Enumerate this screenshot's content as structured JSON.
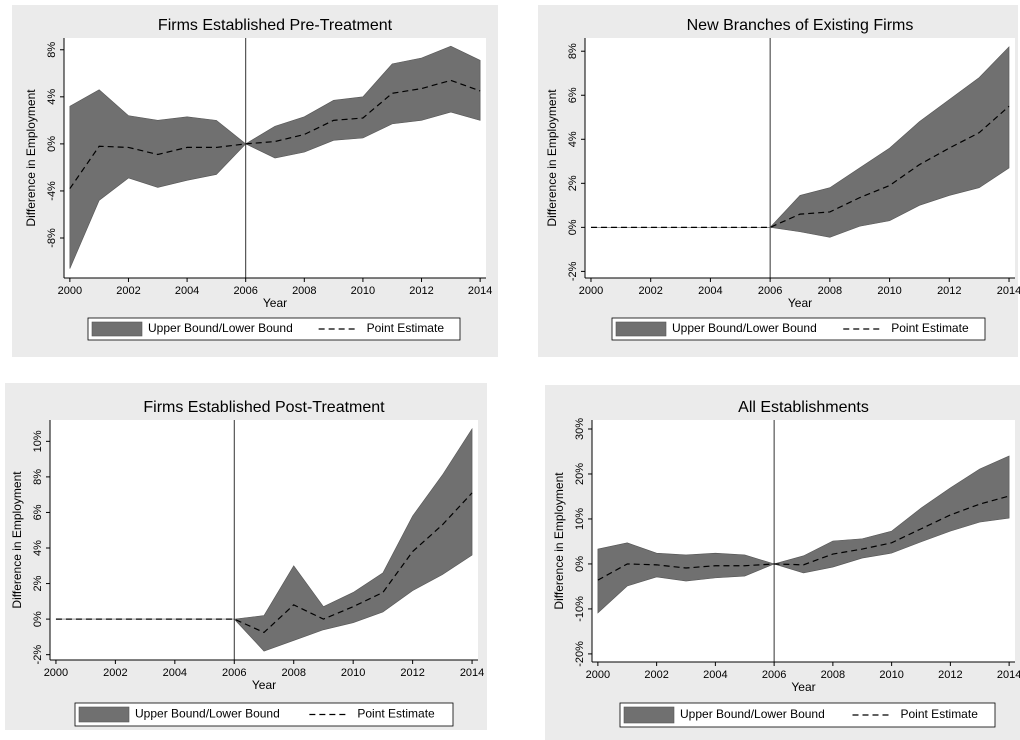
{
  "chart_data": [
    {
      "type": "band-line",
      "title": "Firms Established Pre-Treatment",
      "x_label": "Year",
      "y_label": "Difference in Employment",
      "x": [
        2000,
        2001,
        2002,
        2003,
        2004,
        2005,
        2006,
        2007,
        2008,
        2009,
        2010,
        2011,
        2012,
        2013,
        2014
      ],
      "series": [
        {
          "name": "Upper Bound/Lower Bound",
          "color": "#707070",
          "upper": [
            3.2,
            4.6,
            2.4,
            2.0,
            2.3,
            2.0,
            0,
            1.5,
            2.3,
            3.7,
            4.0,
            6.8,
            7.3,
            8.3,
            7.1
          ],
          "lower": [
            -10.6,
            -4.8,
            -2.9,
            -3.7,
            -3.1,
            -2.6,
            0,
            -1.2,
            -0.7,
            0.3,
            0.5,
            1.7,
            2.0,
            2.7,
            2.0
          ]
        },
        {
          "name": "Point Estimate",
          "color": "#000000",
          "values": [
            -3.8,
            -0.2,
            -0.3,
            -0.9,
            -0.3,
            -0.3,
            0,
            0.2,
            0.8,
            2.0,
            2.2,
            4.3,
            4.7,
            5.4,
            4.5
          ]
        }
      ],
      "vline": 2006,
      "xlim": [
        1999.8,
        2014.2
      ],
      "xticks": [
        2000,
        2002,
        2004,
        2006,
        2008,
        2010,
        2012,
        2014
      ],
      "ylim": [
        -11.4,
        9.0
      ],
      "yticks": [
        {
          "value": -8,
          "label": "-8%"
        },
        {
          "value": -4,
          "label": "-4%"
        },
        {
          "value": 0,
          "label": "0%"
        },
        {
          "value": 4,
          "label": "4%"
        },
        {
          "value": 8,
          "label": "8%"
        }
      ]
    },
    {
      "type": "band-line",
      "title": "New Branches of Existing Firms",
      "x_label": "Year",
      "y_label": "Difference in Employment",
      "x": [
        2000,
        2001,
        2002,
        2003,
        2004,
        2005,
        2006,
        2007,
        2008,
        2009,
        2010,
        2011,
        2012,
        2013,
        2014
      ],
      "series": [
        {
          "name": "Upper Bound/Lower Bound",
          "color": "#707070",
          "upper": [
            0,
            0,
            0,
            0,
            0,
            0,
            0,
            1.45,
            1.8,
            2.7,
            3.6,
            4.8,
            5.8,
            6.8,
            8.2
          ],
          "lower": [
            0,
            0,
            0,
            0,
            0,
            0,
            0,
            -0.2,
            -0.45,
            0.05,
            0.3,
            1.0,
            1.45,
            1.8,
            2.7
          ]
        },
        {
          "name": "Point Estimate",
          "color": "#000000",
          "values": [
            0,
            0,
            0,
            0,
            0,
            0,
            0,
            0.6,
            0.7,
            1.35,
            1.9,
            2.85,
            3.6,
            4.3,
            5.5
          ]
        }
      ],
      "vline": 2006,
      "xlim": [
        1999.8,
        2014.2
      ],
      "xticks": [
        2000,
        2002,
        2004,
        2006,
        2008,
        2010,
        2012,
        2014
      ],
      "ylim": [
        -2.3,
        8.6
      ],
      "yticks": [
        {
          "value": -2,
          "label": "-2%"
        },
        {
          "value": 0,
          "label": "0%"
        },
        {
          "value": 2,
          "label": "2%"
        },
        {
          "value": 4,
          "label": "4%"
        },
        {
          "value": 6,
          "label": "6%"
        },
        {
          "value": 8,
          "label": "8%"
        }
      ]
    },
    {
      "type": "band-line",
      "title": "Firms Established Post-Treatment",
      "x_label": "Year",
      "y_label": "Difference in Employment",
      "x": [
        2000,
        2001,
        2002,
        2003,
        2004,
        2005,
        2006,
        2007,
        2008,
        2009,
        2010,
        2011,
        2012,
        2013,
        2014
      ],
      "series": [
        {
          "name": "Upper Bound/Lower Bound",
          "color": "#707070",
          "upper": [
            0,
            0,
            0,
            0,
            0,
            0,
            0,
            0.2,
            3.0,
            0.7,
            1.5,
            2.6,
            5.8,
            8.1,
            10.7
          ],
          "lower": [
            0,
            0,
            0,
            0,
            0,
            0,
            0,
            -1.8,
            -1.2,
            -0.6,
            -0.2,
            0.4,
            1.6,
            2.5,
            3.6
          ]
        },
        {
          "name": "Point Estimate",
          "color": "#000000",
          "values": [
            0,
            0,
            0,
            0,
            0,
            0,
            0,
            -0.75,
            0.8,
            0,
            0.7,
            1.5,
            3.8,
            5.3,
            7.1
          ]
        }
      ],
      "vline": 2006,
      "xlim": [
        1999.8,
        2014.2
      ],
      "xticks": [
        2000,
        2002,
        2004,
        2006,
        2008,
        2010,
        2012,
        2014
      ],
      "ylim": [
        -2.3,
        11.2
      ],
      "yticks": [
        {
          "value": -2,
          "label": "-2%"
        },
        {
          "value": 0,
          "label": "0%"
        },
        {
          "value": 2,
          "label": "2%"
        },
        {
          "value": 4,
          "label": "4%"
        },
        {
          "value": 6,
          "label": "6%"
        },
        {
          "value": 8,
          "label": "8%"
        },
        {
          "value": 10,
          "label": "10%"
        }
      ]
    },
    {
      "type": "band-line",
      "title": "All Establishments",
      "x_label": "Year",
      "y_label": "Difference in Employment",
      "x": [
        2000,
        2001,
        2002,
        2003,
        2004,
        2005,
        2006,
        2007,
        2008,
        2009,
        2010,
        2011,
        2012,
        2013,
        2014
      ],
      "series": [
        {
          "name": "Upper Bound/Lower Bound",
          "color": "#707070",
          "upper": [
            3.3,
            4.7,
            2.4,
            2.0,
            2.4,
            2.0,
            0,
            1.8,
            5.1,
            5.6,
            7.3,
            12.4,
            16.9,
            21.1,
            24.0
          ],
          "lower": [
            -10.9,
            -4.9,
            -2.9,
            -3.8,
            -3.1,
            -2.7,
            0,
            -2.0,
            -0.7,
            1.3,
            2.4,
            4.9,
            7.3,
            9.3,
            10.2
          ]
        },
        {
          "name": "Point Estimate",
          "color": "#000000",
          "values": [
            -3.6,
            0,
            -0.2,
            -0.9,
            -0.4,
            -0.4,
            0,
            -0.2,
            2.2,
            3.3,
            4.7,
            7.8,
            10.9,
            13.3,
            15.1
          ]
        }
      ],
      "vline": 2006,
      "xlim": [
        1999.8,
        2014.2
      ],
      "xticks": [
        2000,
        2002,
        2004,
        2006,
        2008,
        2010,
        2012,
        2014
      ],
      "ylim": [
        -21.8,
        32.0
      ],
      "yticks": [
        {
          "value": -20,
          "label": "-20%"
        },
        {
          "value": -10,
          "label": "-10%"
        },
        {
          "value": 0,
          "label": "0%"
        },
        {
          "value": 10,
          "label": "10%"
        },
        {
          "value": 20,
          "label": "20%"
        },
        {
          "value": 30,
          "label": "30%"
        }
      ]
    }
  ]
}
